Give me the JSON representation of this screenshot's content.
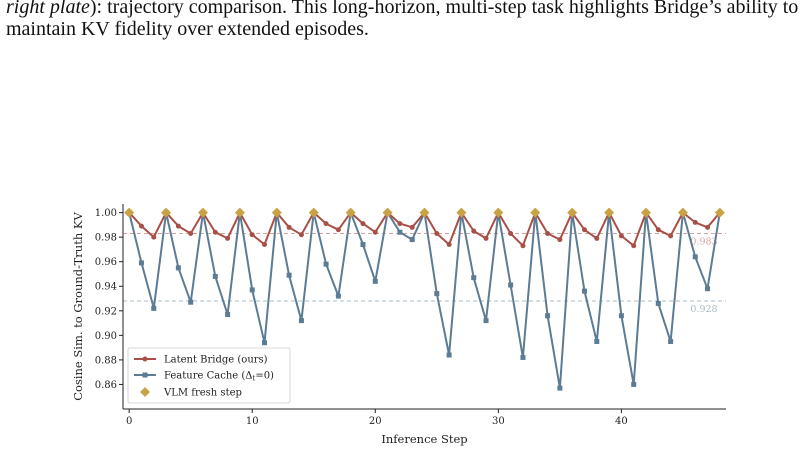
{
  "caption": {
    "italic": "right plate",
    "text": "): trajectory comparison. This long-horizon, multi-step task highlights Bridge’s ability to maintain KV fidelity over extended episodes."
  },
  "chart_data": {
    "type": "line",
    "xlabel": "Inference Step",
    "ylabel": "Cosine Sim. to Ground-Truth KV",
    "xlim": [
      -0.5,
      48.5
    ],
    "ylim": [
      0.84,
      1.007
    ],
    "xticks": [
      0,
      10,
      20,
      30,
      40
    ],
    "yticks": [
      0.86,
      0.88,
      0.9,
      0.92,
      0.94,
      0.96,
      0.98,
      1.0
    ],
    "x": [
      0,
      1,
      2,
      3,
      4,
      5,
      6,
      7,
      8,
      9,
      10,
      11,
      12,
      13,
      14,
      15,
      16,
      17,
      18,
      19,
      20,
      21,
      22,
      23,
      24,
      25,
      26,
      27,
      28,
      29,
      30,
      31,
      32,
      33,
      34,
      35,
      36,
      37,
      38,
      39,
      40,
      41,
      42,
      43,
      44,
      45,
      46,
      47,
      48
    ],
    "series": [
      {
        "name": "Latent Bridge (ours)",
        "color": "#a85048",
        "marker": "circle",
        "values": [
          1.0,
          0.989,
          0.98,
          1.0,
          0.989,
          0.983,
          1.0,
          0.984,
          0.979,
          1.0,
          0.982,
          0.974,
          1.0,
          0.988,
          0.982,
          1.0,
          0.991,
          0.986,
          1.0,
          0.991,
          0.984,
          1.0,
          0.991,
          0.988,
          1.0,
          0.983,
          0.974,
          1.0,
          0.985,
          0.979,
          1.0,
          0.983,
          0.973,
          1.0,
          0.983,
          0.978,
          1.0,
          0.986,
          0.979,
          1.0,
          0.981,
          0.973,
          1.0,
          0.986,
          0.981,
          1.0,
          0.992,
          0.988,
          1.0
        ]
      },
      {
        "name": "Feature Cache (Δ_t=0)",
        "color": "#5b7c94",
        "marker": "square",
        "values": [
          1.0,
          0.959,
          0.922,
          1.0,
          0.955,
          0.927,
          1.0,
          0.948,
          0.917,
          1.0,
          0.937,
          0.894,
          1.0,
          0.949,
          0.912,
          1.0,
          0.958,
          0.932,
          1.0,
          0.974,
          0.944,
          1.0,
          0.984,
          0.978,
          1.0,
          0.934,
          0.884,
          1.0,
          0.947,
          0.912,
          1.0,
          0.941,
          0.882,
          1.0,
          0.916,
          0.857,
          1.0,
          0.936,
          0.895,
          1.0,
          0.916,
          0.86,
          1.0,
          0.926,
          0.895,
          1.0,
          0.964,
          0.938,
          1.0
        ]
      },
      {
        "name": "VLM fresh step",
        "color": "#c9a245",
        "marker": "diamond",
        "x": [
          0,
          3,
          6,
          9,
          12,
          15,
          18,
          21,
          24,
          27,
          30,
          33,
          36,
          39,
          42,
          45,
          48
        ],
        "values": [
          1,
          1,
          1,
          1,
          1,
          1,
          1,
          1,
          1,
          1,
          1,
          1,
          1,
          1,
          1,
          1,
          1
        ]
      }
    ],
    "hlines": [
      {
        "value": 0.983,
        "color": "#d9a39d",
        "label": "0.983"
      },
      {
        "value": 0.928,
        "color": "#a9bccb",
        "label": "0.928"
      }
    ],
    "legend": {
      "placement": "lower-left",
      "labels": [
        "Latent Bridge (ours)",
        "Feature Cache (Δ",
        "t",
        "=0)",
        "VLM fresh step"
      ]
    },
    "grid": false
  }
}
